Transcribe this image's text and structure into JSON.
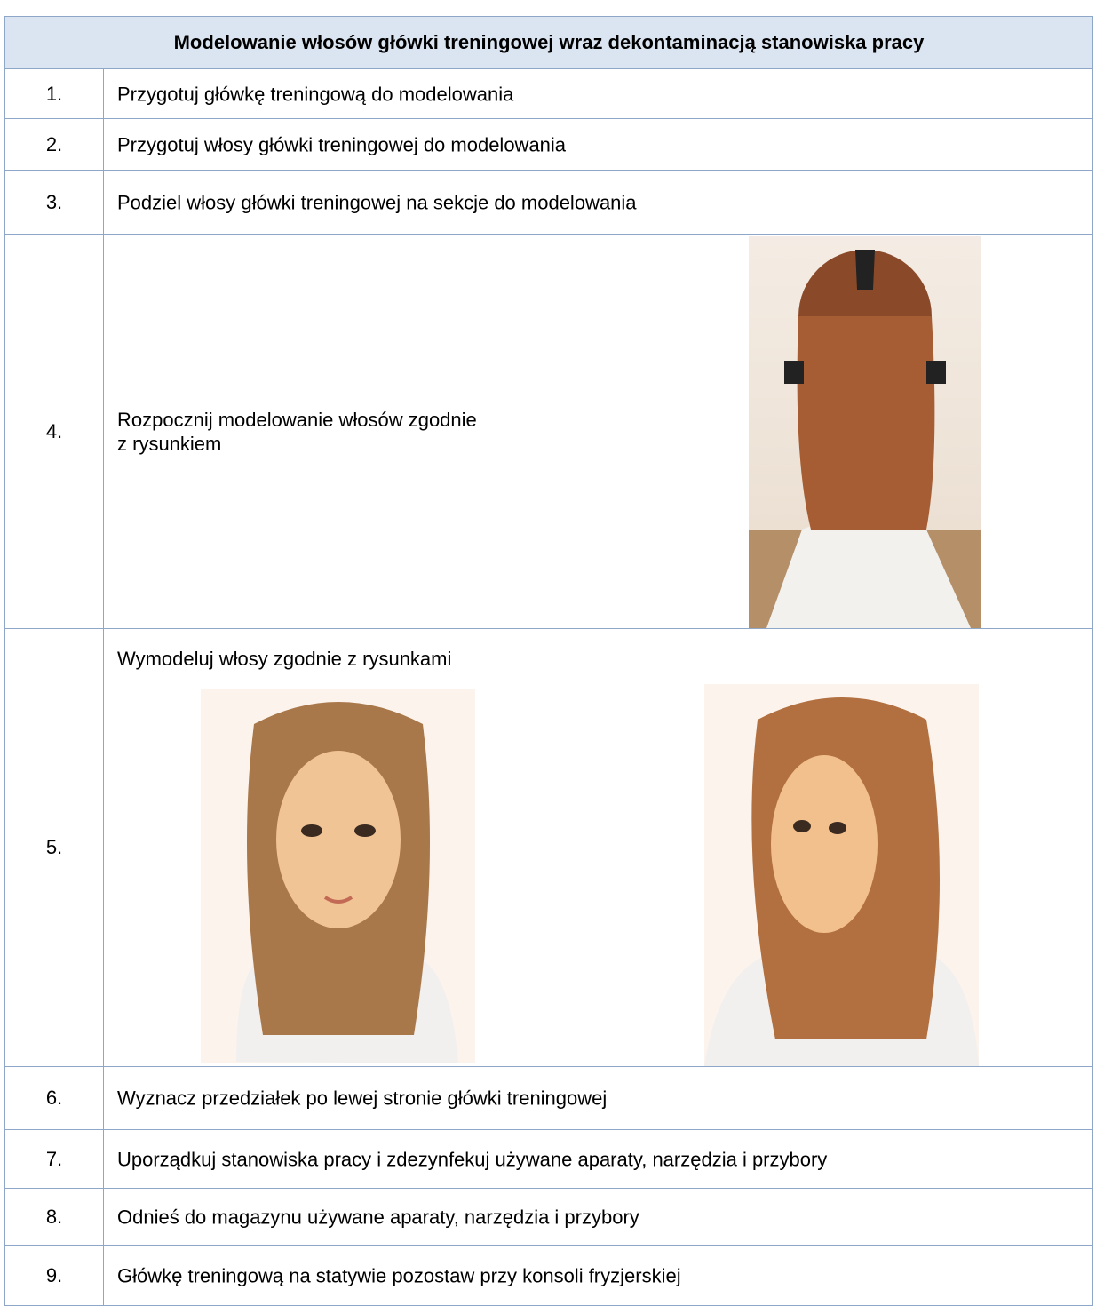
{
  "header": {
    "title": "Modelowanie włosów główki treningowej wraz dekontaminacją stanowiska pracy"
  },
  "rows": [
    {
      "number": "1.",
      "text": [
        "Przygotuj główkę treningową do modelowania"
      ]
    },
    {
      "number": "2.",
      "text": [
        "Przygotuj włosy główki treningowej do modelowania"
      ]
    },
    {
      "number": "3.",
      "text": [
        "Podziel włosy główki treningowej na sekcje do modelowania"
      ]
    },
    {
      "number": "4.",
      "text": [
        "Rozpocznij modelowanie włosów zgodnie",
        "z rysunkiem"
      ]
    },
    {
      "number": "5.",
      "text": [
        "Wymodeluj włosy zgodnie z rysunkami"
      ]
    },
    {
      "number": "6.",
      "text": [
        "Wyznacz przedziałek po lewej stronie główki treningowej"
      ]
    },
    {
      "number": "7.",
      "text": [
        "Uporządkuj stanowiska pracy i zdezynfekuj używane aparaty, narzędzia i przybory"
      ]
    },
    {
      "number": "8.",
      "text": [
        "Odnieś do magazynu używane aparaty, narzędzia i przybory"
      ]
    },
    {
      "number": "9.",
      "text": [
        "Główkę treningową na statywie pozostaw przy konsoli fryzjerskiej"
      ]
    }
  ]
}
